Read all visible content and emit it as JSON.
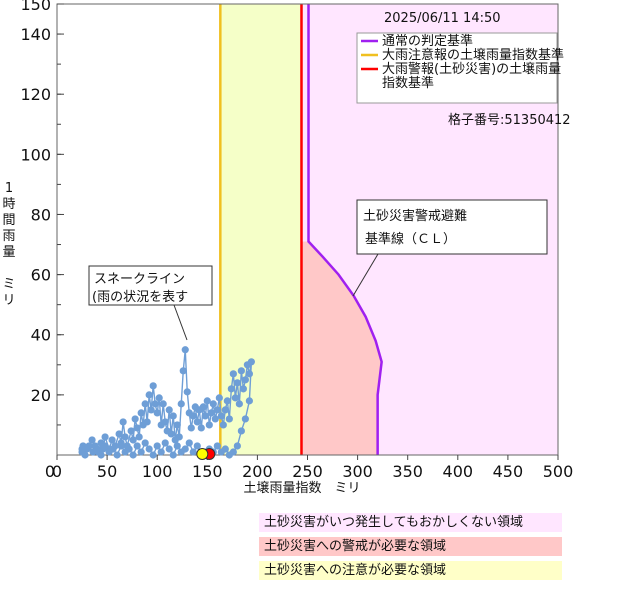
{
  "chart_data": {
    "type": "line",
    "timestamp": "2025/06/11 14:50",
    "xlabel": "土壌雨量指数　ミリ",
    "ylabel": "1時間雨量　ミリ",
    "xlim": [
      0,
      500
    ],
    "ylim": [
      0,
      150
    ],
    "x_ticks": [
      0,
      50,
      100,
      150,
      200,
      250,
      300,
      350,
      400,
      450,
      500
    ],
    "y_ticks": [
      20,
      40,
      60,
      80,
      100,
      120,
      140,
      150
    ],
    "legend": [
      {
        "label": "通常の判定基準",
        "color": "#a020f0"
      },
      {
        "label": "大雨注意報の土壌雨量指数基準",
        "color": "#f0c020"
      },
      {
        "label": "大雨警報(土砂災害)の土壌雨量",
        "color": "#ff0000"
      },
      {
        "label": "指数基準",
        "color": ""
      }
    ],
    "grid_label": "格子番号:51350412",
    "advisory_threshold": 163,
    "warning_threshold": 244,
    "cl_curve": [
      [
        251,
        150
      ],
      [
        251,
        71
      ],
      [
        265,
        66
      ],
      [
        281,
        60
      ],
      [
        296,
        53
      ],
      [
        308,
        46
      ],
      [
        318,
        38
      ],
      [
        324,
        31
      ],
      [
        320,
        20
      ],
      [
        320,
        0
      ]
    ],
    "snake": [
      [
        25,
        1
      ],
      [
        26,
        3
      ],
      [
        30,
        2
      ],
      [
        35,
        5
      ],
      [
        38,
        3
      ],
      [
        41,
        1
      ],
      [
        44,
        4
      ],
      [
        46,
        2
      ],
      [
        48,
        6
      ],
      [
        52,
        2
      ],
      [
        55,
        5
      ],
      [
        58,
        3
      ],
      [
        62,
        7
      ],
      [
        64,
        4
      ],
      [
        66,
        11
      ],
      [
        68,
        6
      ],
      [
        70,
        3
      ],
      [
        74,
        8
      ],
      [
        76,
        5
      ],
      [
        78,
        12
      ],
      [
        80,
        9
      ],
      [
        82,
        6
      ],
      [
        84,
        14
      ],
      [
        86,
        10
      ],
      [
        88,
        17
      ],
      [
        90,
        11
      ],
      [
        92,
        20
      ],
      [
        94,
        15
      ],
      [
        96,
        23
      ],
      [
        98,
        17
      ],
      [
        100,
        14
      ],
      [
        102,
        19
      ],
      [
        104,
        10
      ],
      [
        106,
        17
      ],
      [
        108,
        11
      ],
      [
        110,
        8
      ],
      [
        112,
        15
      ],
      [
        114,
        7
      ],
      [
        116,
        13
      ],
      [
        118,
        5
      ],
      [
        120,
        10
      ],
      [
        122,
        6
      ],
      [
        124,
        17
      ],
      [
        126,
        28
      ],
      [
        128,
        35
      ],
      [
        130,
        21
      ],
      [
        132,
        14
      ],
      [
        134,
        9
      ],
      [
        136,
        13
      ],
      [
        138,
        16
      ],
      [
        140,
        11
      ],
      [
        142,
        15
      ],
      [
        144,
        9
      ],
      [
        146,
        16
      ],
      [
        148,
        13
      ],
      [
        150,
        18
      ],
      [
        152,
        10
      ],
      [
        154,
        14
      ],
      [
        156,
        17
      ],
      [
        158,
        12
      ],
      [
        160,
        15
      ],
      [
        162,
        19
      ],
      [
        164,
        13
      ],
      [
        166,
        10
      ],
      [
        168,
        15
      ],
      [
        170,
        18
      ],
      [
        172,
        12
      ],
      [
        174,
        22
      ],
      [
        176,
        27
      ],
      [
        178,
        19
      ],
      [
        180,
        24
      ],
      [
        182,
        17
      ],
      [
        184,
        28
      ],
      [
        186,
        22
      ],
      [
        188,
        25
      ],
      [
        190,
        30
      ],
      [
        192,
        27
      ],
      [
        194,
        31
      ],
      [
        192,
        18
      ],
      [
        188,
        12
      ],
      [
        184,
        8
      ],
      [
        180,
        3
      ],
      [
        176,
        1
      ],
      [
        172,
        0
      ],
      [
        168,
        2
      ],
      [
        164,
        1
      ],
      [
        160,
        3
      ],
      [
        156,
        1
      ],
      [
        152,
        2
      ],
      [
        148,
        1
      ],
      [
        144,
        0
      ],
      [
        140,
        3
      ],
      [
        136,
        1
      ],
      [
        132,
        4
      ],
      [
        128,
        2
      ],
      [
        124,
        1
      ],
      [
        120,
        3
      ],
      [
        116,
        0
      ],
      [
        112,
        2
      ],
      [
        108,
        4
      ],
      [
        104,
        1
      ],
      [
        100,
        3
      ],
      [
        96,
        0
      ],
      [
        92,
        2
      ],
      [
        88,
        4
      ],
      [
        84,
        1
      ],
      [
        80,
        3
      ],
      [
        76,
        0
      ],
      [
        72,
        2
      ],
      [
        68,
        1
      ],
      [
        64,
        3
      ],
      [
        60,
        0
      ],
      [
        56,
        2
      ],
      [
        52,
        1
      ],
      [
        48,
        3
      ],
      [
        44,
        0
      ],
      [
        40,
        2
      ],
      [
        36,
        1
      ],
      [
        32,
        3
      ],
      [
        28,
        0
      ],
      [
        25,
        2
      ]
    ],
    "current_points": [
      {
        "x": 152,
        "y": 0,
        "color": "#ff0000"
      },
      {
        "x": 145,
        "y": 0,
        "color": "#ffff00"
      }
    ],
    "annotations": {
      "snake_line": [
        "スネークライン",
        "(雨の状況を表す"
      ],
      "cl_line": [
        "土砂災害警戒避難",
        "基準線（ＣＬ）"
      ]
    }
  },
  "legend_boxes": [
    {
      "label": "土砂災害がいつ発生してもおかしくない領域",
      "color": "#ffe6ff"
    },
    {
      "label": "土砂災害への警戒が必要な領域",
      "color": "#ffc8c8"
    },
    {
      "label": "土砂災害への注意が必要な領域",
      "color": "#ffffc8"
    }
  ]
}
